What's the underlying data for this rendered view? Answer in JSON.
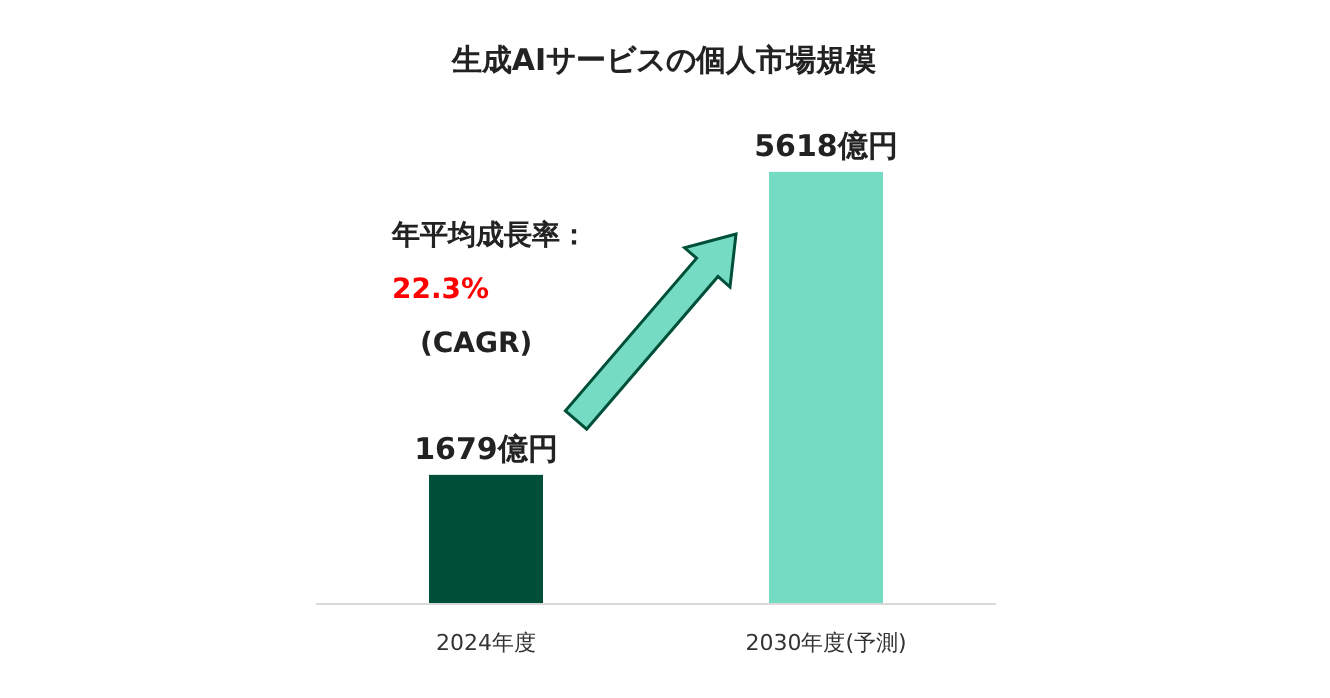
{
  "chart_data": {
    "type": "bar",
    "title": "生成AIサービスの個人市場規模",
    "categories": [
      "2024年度",
      "2030年度(予測)"
    ],
    "values": [
      1679,
      5618
    ],
    "colors": [
      "#005039",
      "#76dbc3"
    ],
    "value_labels": [
      "1679億円",
      "5618億円"
    ],
    "annotations": [
      "年平均成長率：",
      "22.3%",
      "(CAGR)"
    ]
  }
}
